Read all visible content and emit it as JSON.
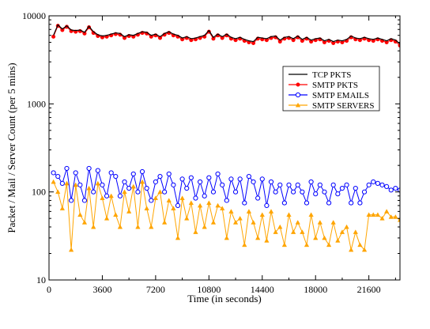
{
  "chart_data": {
    "type": "line",
    "title": "",
    "xlabel": "Time (in seconds)",
    "ylabel": "Packet / Mail / Server Count (per 5 mins)",
    "xlim": [
      0,
      23700
    ],
    "ylim": [
      10,
      10000
    ],
    "yscale": "log",
    "grid": false,
    "legend_position": "top-right",
    "x_ticks": [
      0,
      3600,
      7200,
      10800,
      14400,
      18000,
      21600
    ],
    "x_tick_labels": [
      "0",
      "3600",
      "7200",
      "10800",
      "14400",
      "18000",
      "21600"
    ],
    "y_ticks": [
      10,
      100,
      1000,
      10000
    ],
    "y_tick_labels": [
      "10",
      "100",
      "1000",
      "10000"
    ],
    "x": [
      300,
      600,
      900,
      1200,
      1500,
      1800,
      2100,
      2400,
      2700,
      3000,
      3300,
      3600,
      3900,
      4200,
      4500,
      4800,
      5100,
      5400,
      5700,
      6000,
      6300,
      6600,
      6900,
      7200,
      7500,
      7800,
      8100,
      8400,
      8700,
      9000,
      9300,
      9600,
      9900,
      10200,
      10500,
      10800,
      11100,
      11400,
      11700,
      12000,
      12300,
      12600,
      12900,
      13200,
      13500,
      13800,
      14100,
      14400,
      14700,
      15000,
      15300,
      15600,
      15900,
      16200,
      16500,
      16800,
      17100,
      17400,
      17700,
      18000,
      18300,
      18600,
      18900,
      19200,
      19500,
      19800,
      20100,
      20400,
      20700,
      21000,
      21300,
      21600,
      21900,
      22200,
      22500,
      22800,
      23100,
      23400,
      23700
    ],
    "series": [
      {
        "name": "TCP PKTS",
        "color": "#000000",
        "marker": "none",
        "values": [
          6000,
          7900,
          7100,
          7700,
          6900,
          6800,
          6900,
          6500,
          7600,
          6600,
          6100,
          5900,
          6000,
          6200,
          6400,
          6300,
          5800,
          6100,
          6000,
          6300,
          6600,
          6500,
          6000,
          6200,
          5800,
          6300,
          6600,
          6200,
          6000,
          5600,
          5800,
          5500,
          5600,
          5800,
          6000,
          6800,
          5700,
          6200,
          5800,
          6200,
          5700,
          5500,
          5700,
          5400,
          5200,
          5100,
          5700,
          5600,
          5500,
          5800,
          5900,
          5300,
          5700,
          5800,
          5500,
          5900,
          5400,
          5700,
          5300,
          5500,
          5600,
          5200,
          5400,
          5100,
          5300,
          5200,
          5400,
          5900,
          5600,
          5500,
          5700,
          5500,
          5400,
          5600,
          5400,
          5200,
          5500,
          5300,
          4800
        ]
      },
      {
        "name": "SMTP PKTS",
        "color": "#ff0000",
        "marker": "filled-circle",
        "values": [
          5800,
          7700,
          6900,
          7500,
          6700,
          6600,
          6700,
          6300,
          7400,
          6400,
          5900,
          5700,
          5800,
          6000,
          6200,
          6100,
          5600,
          5900,
          5800,
          6100,
          6400,
          6300,
          5800,
          6000,
          5600,
          6100,
          6400,
          6000,
          5800,
          5400,
          5600,
          5300,
          5400,
          5600,
          5800,
          6600,
          5500,
          6000,
          5600,
          6000,
          5500,
          5300,
          5500,
          5200,
          5000,
          4900,
          5500,
          5400,
          5300,
          5600,
          5700,
          5100,
          5500,
          5600,
          5300,
          5700,
          5200,
          5500,
          5100,
          5300,
          5400,
          5000,
          5200,
          4900,
          5100,
          5000,
          5200,
          5700,
          5400,
          5300,
          5500,
          5300,
          5200,
          5400,
          5200,
          5000,
          5300,
          5100,
          4600
        ]
      },
      {
        "name": "SMTP EMAILS",
        "color": "#0000ff",
        "marker": "open-circle",
        "values": [
          165,
          150,
          125,
          185,
          80,
          165,
          120,
          80,
          185,
          100,
          175,
          120,
          90,
          165,
          150,
          90,
          130,
          110,
          160,
          100,
          170,
          110,
          80,
          130,
          150,
          100,
          160,
          120,
          70,
          140,
          110,
          145,
          85,
          130,
          90,
          145,
          100,
          160,
          120,
          80,
          140,
          100,
          140,
          75,
          150,
          130,
          85,
          140,
          70,
          130,
          100,
          120,
          75,
          120,
          100,
          120,
          100,
          75,
          130,
          95,
          120,
          100,
          75,
          120,
          95,
          110,
          120,
          75,
          110,
          75,
          100,
          120,
          130,
          125,
          120,
          115,
          105,
          110,
          105
        ]
      },
      {
        "name": "SMTP SERVERS",
        "color": "#ffa500",
        "marker": "filled-triangle",
        "values": [
          130,
          100,
          65,
          125,
          22,
          120,
          55,
          45,
          110,
          40,
          125,
          85,
          50,
          90,
          55,
          40,
          100,
          60,
          115,
          40,
          130,
          65,
          40,
          85,
          100,
          45,
          80,
          65,
          30,
          85,
          50,
          75,
          35,
          70,
          40,
          75,
          45,
          70,
          65,
          30,
          60,
          45,
          50,
          25,
          60,
          45,
          30,
          55,
          28,
          60,
          35,
          40,
          25,
          55,
          35,
          45,
          35,
          25,
          55,
          30,
          45,
          30,
          25,
          45,
          28,
          35,
          40,
          22,
          35,
          25,
          22,
          55,
          55,
          55,
          50,
          60,
          52,
          52,
          48
        ]
      }
    ]
  }
}
